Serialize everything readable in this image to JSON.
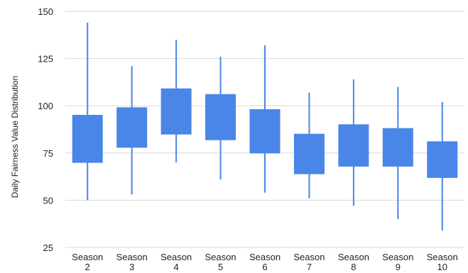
{
  "chart_data": {
    "type": "candlestick",
    "title": "",
    "xlabel": "",
    "ylabel": "Daily Fairness Value Distribution",
    "ylim": [
      25,
      150
    ],
    "yticks": [
      25,
      50,
      75,
      100,
      125,
      150
    ],
    "grid": true,
    "legend": "none",
    "color": "#4a86e8",
    "categories": [
      [
        "Season",
        "2"
      ],
      [
        "Season",
        "3"
      ],
      [
        "Season",
        "4"
      ],
      [
        "Season",
        "5"
      ],
      [
        "Season",
        "6"
      ],
      [
        "Season",
        "7"
      ],
      [
        "Season",
        "8"
      ],
      [
        "Season",
        "9"
      ],
      [
        "Season",
        "10"
      ]
    ],
    "boxes": [
      {
        "low": 50,
        "q1": 70,
        "q3": 95,
        "high": 144
      },
      {
        "low": 53,
        "q1": 78,
        "q3": 99,
        "high": 121
      },
      {
        "low": 70,
        "q1": 85,
        "q3": 109,
        "high": 135
      },
      {
        "low": 61,
        "q1": 82,
        "q3": 106,
        "high": 126
      },
      {
        "low": 54,
        "q1": 75,
        "q3": 98,
        "high": 132
      },
      {
        "low": 51,
        "q1": 64,
        "q3": 85,
        "high": 107
      },
      {
        "low": 47,
        "q1": 68,
        "q3": 90,
        "high": 114
      },
      {
        "low": 40,
        "q1": 68,
        "q3": 88,
        "high": 110
      },
      {
        "low": 34,
        "q1": 62,
        "q3": 81,
        "high": 102
      }
    ]
  }
}
